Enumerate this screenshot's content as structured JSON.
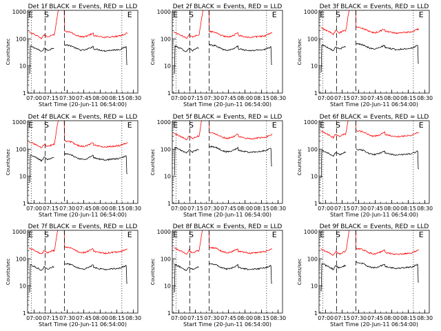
{
  "figure": {
    "subtitle": "Start Time (20-Jun-11 06:54:00)",
    "ylabel": "Counts/sec",
    "x_ticks": [
      "07:00",
      "07:15",
      "07:30",
      "07:45",
      "08:00",
      "08:15",
      "08:30"
    ],
    "x_tick_minutes": [
      6,
      21,
      36,
      51,
      66,
      81,
      96
    ],
    "x_range_minutes": [
      0,
      100
    ],
    "y_ticks": [
      "1",
      "10",
      "100",
      "1000"
    ],
    "y_range_log10": [
      0,
      3.05
    ],
    "markers": {
      "start_label": "E",
      "s_label": "S",
      "end_label": "E",
      "dotted_minutes": [
        3.5,
        85.5
      ],
      "dashed_minutes": [
        16,
        33.5
      ],
      "s_minute": 15,
      "end_minute": 90.5
    },
    "colors": {
      "events": "#000000",
      "lld": "#ff0000",
      "axes": "#000000"
    }
  },
  "chart_data": [
    {
      "type": "line",
      "title": "Det 1f BLACK = Events, RED = LLD",
      "series": [
        {
          "name": "Events",
          "color": "#000000",
          "level": 45
        },
        {
          "name": "LLD",
          "color": "#ff0000",
          "level": 140
        }
      ],
      "ylim_log10": [
        0,
        3.05
      ],
      "xlim_minutes": [
        0,
        100
      ]
    },
    {
      "type": "line",
      "title": "Det 2f BLACK = Events, RED = LLD",
      "series": [
        {
          "name": "Events",
          "color": "#000000",
          "level": 45
        },
        {
          "name": "LLD",
          "color": "#ff0000",
          "level": 140
        }
      ],
      "ylim_log10": [
        0,
        3.05
      ],
      "xlim_minutes": [
        0,
        100
      ]
    },
    {
      "type": "line",
      "title": "Det 3f BLACK = Events, RED = LLD",
      "series": [
        {
          "name": "Events",
          "color": "#000000",
          "level": 50
        },
        {
          "name": "LLD",
          "color": "#ff0000",
          "level": 200
        }
      ],
      "ylim_log10": [
        0,
        3.05
      ],
      "xlim_minutes": [
        0,
        100
      ]
    },
    {
      "type": "line",
      "title": "Det 4f BLACK = Events, RED = LLD",
      "series": [
        {
          "name": "Events",
          "color": "#000000",
          "level": 50
        },
        {
          "name": "LLD",
          "color": "#ff0000",
          "level": 150
        }
      ],
      "ylim_log10": [
        0,
        3.05
      ],
      "xlim_minutes": [
        0,
        100
      ]
    },
    {
      "type": "line",
      "title": "Det 5f BLACK = Events, RED = LLD",
      "series": [
        {
          "name": "Events",
          "color": "#000000",
          "level": 95
        },
        {
          "name": "LLD",
          "color": "#ff0000",
          "level": 300
        }
      ],
      "ylim_log10": [
        0,
        3.05
      ],
      "xlim_minutes": [
        0,
        100
      ]
    },
    {
      "type": "line",
      "title": "Det 6f BLACK = Events, RED = LLD",
      "series": [
        {
          "name": "Events",
          "color": "#000000",
          "level": 75
        },
        {
          "name": "LLD",
          "color": "#ff0000",
          "level": 360
        }
      ],
      "ylim_log10": [
        0,
        3.05
      ],
      "xlim_minutes": [
        0,
        100
      ]
    },
    {
      "type": "line",
      "title": "Det 7f BLACK = Events, RED = LLD",
      "series": [
        {
          "name": "Events",
          "color": "#000000",
          "level": 50
        },
        {
          "name": "LLD",
          "color": "#ff0000",
          "level": 200
        }
      ],
      "ylim_log10": [
        0,
        3.05
      ],
      "xlim_minutes": [
        0,
        100
      ]
    },
    {
      "type": "line",
      "title": "Det 8f BLACK = Events, RED = LLD",
      "series": [
        {
          "name": "Events",
          "color": "#000000",
          "level": 50
        },
        {
          "name": "LLD",
          "color": "#ff0000",
          "level": 200
        }
      ],
      "ylim_log10": [
        0,
        3.05
      ],
      "xlim_minutes": [
        0,
        100
      ]
    },
    {
      "type": "line",
      "title": "Det 9f BLACK = Events, RED = LLD",
      "series": [
        {
          "name": "Events",
          "color": "#000000",
          "level": 55
        },
        {
          "name": "LLD",
          "color": "#ff0000",
          "level": 180
        }
      ],
      "ylim_log10": [
        0,
        3.05
      ],
      "xlim_minutes": [
        0,
        100
      ]
    }
  ]
}
